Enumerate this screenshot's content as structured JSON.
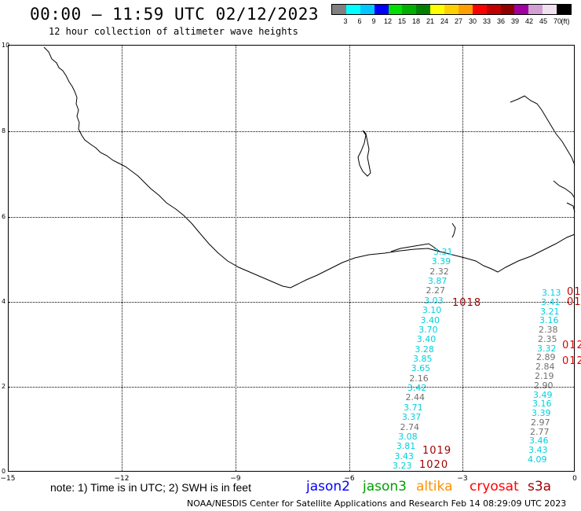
{
  "header": {
    "title": "00:00 – 11:59 UTC 02/12/2023",
    "subtitle": "12 hour collection of altimeter wave heights"
  },
  "legend": {
    "colors": [
      "#808080",
      "#00ffff",
      "#00c8ff",
      "#0000ff",
      "#00e000",
      "#00b000",
      "#008000",
      "#ffff00",
      "#ffd000",
      "#ffa000",
      "#ff0000",
      "#c00000",
      "#900000",
      "#a000a0",
      "#d0a0d0",
      "#f0e0f0",
      "#000000"
    ],
    "labels": [
      "3",
      "6",
      "9",
      "12",
      "15",
      "18",
      "21",
      "24",
      "27",
      "30",
      "33",
      "36",
      "39",
      "42",
      "45",
      "70"
    ],
    "unit": "(ft)"
  },
  "axes": {
    "x_ticks": [
      "−15",
      "−12",
      "−9",
      "−6",
      "−3",
      "0"
    ],
    "y_ticks": [
      "10",
      "8",
      "6",
      "4",
      "2",
      "0"
    ]
  },
  "track_left": [
    {
      "v": "3.31",
      "c": "cyan"
    },
    {
      "v": "3.39",
      "c": "cyan"
    },
    {
      "v": "2.32",
      "c": "gray"
    },
    {
      "v": "3.87",
      "c": "cyan"
    },
    {
      "v": "2.27",
      "c": "gray"
    },
    {
      "v": "3.03",
      "c": "cyan"
    },
    {
      "v": "3.10",
      "c": "cyan"
    },
    {
      "v": "3.40",
      "c": "cyan"
    },
    {
      "v": "3.70",
      "c": "cyan"
    },
    {
      "v": "3.40",
      "c": "cyan"
    },
    {
      "v": "3.28",
      "c": "cyan"
    },
    {
      "v": "3.85",
      "c": "cyan"
    },
    {
      "v": "3.65",
      "c": "cyan"
    },
    {
      "v": "2.16",
      "c": "gray"
    },
    {
      "v": "3.42",
      "c": "cyan"
    },
    {
      "v": "2.44",
      "c": "gray"
    },
    {
      "v": "3.71",
      "c": "cyan"
    },
    {
      "v": "3.37",
      "c": "cyan"
    },
    {
      "v": "2.74",
      "c": "gray"
    },
    {
      "v": "3.08",
      "c": "cyan"
    },
    {
      "v": "3.81",
      "c": "cyan"
    },
    {
      "v": "3.43",
      "c": "cyan"
    },
    {
      "v": "3.23",
      "c": "cyan"
    }
  ],
  "track_right": [
    {
      "v": "3.13",
      "c": "cyan"
    },
    {
      "v": "3.41",
      "c": "cyan"
    },
    {
      "v": "3.21",
      "c": "cyan"
    },
    {
      "v": "3.16",
      "c": "cyan"
    },
    {
      "v": "2.38",
      "c": "gray"
    },
    {
      "v": "2.35",
      "c": "gray"
    },
    {
      "v": "3.32",
      "c": "cyan"
    },
    {
      "v": "2.89",
      "c": "gray"
    },
    {
      "v": "2.84",
      "c": "gray"
    },
    {
      "v": "2.19",
      "c": "gray"
    },
    {
      "v": "2.90",
      "c": "gray"
    },
    {
      "v": "3.49",
      "c": "cyan"
    },
    {
      "v": "3.16",
      "c": "cyan"
    },
    {
      "v": "3.39",
      "c": "cyan"
    },
    {
      "v": "2.97",
      "c": "gray"
    },
    {
      "v": "2.77",
      "c": "gray"
    },
    {
      "v": "3.46",
      "c": "cyan"
    },
    {
      "v": "3.43",
      "c": "cyan"
    },
    {
      "v": "4.09",
      "c": "cyan"
    }
  ],
  "cyclone_labels": [
    "1018",
    "1019",
    "1020"
  ],
  "edge_labels": [
    "01",
    "01",
    "012",
    "012"
  ],
  "footer": {
    "note": "note:  1) Time is in UTC;  2) SWH is in feet",
    "satellites": [
      {
        "name": "jason2",
        "color": "#0000ff"
      },
      {
        "name": "jason3",
        "color": "#00a000"
      },
      {
        "name": "altika",
        "color": "#ff9000"
      },
      {
        "name": "cryosat",
        "color": "#ff0000"
      },
      {
        "name": "s3a",
        "color": "#a00000"
      }
    ],
    "credit": "NOAA/NESDIS Center for Satellite Applications and Research    Feb 14 08:29:09 UTC 2023"
  }
}
